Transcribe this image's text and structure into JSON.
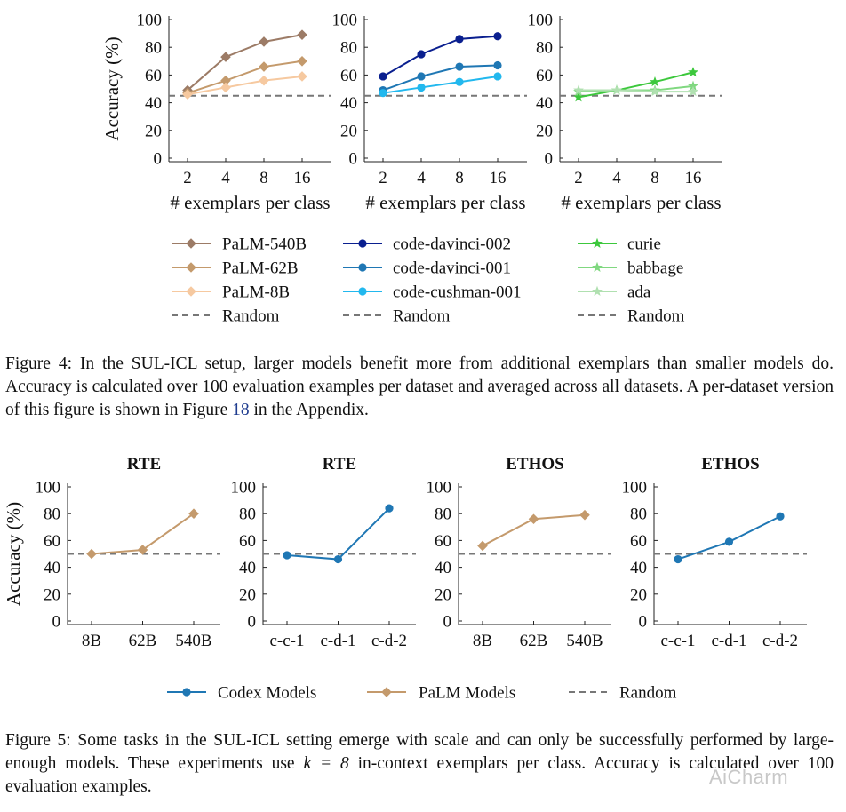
{
  "figure4": {
    "caption_label": "Figure 4:",
    "caption_text": "In the SUL-ICL setup, larger models benefit more from additional exemplars than smaller models do. Accuracy is calculated over 100 evaluation examples per dataset and averaged across all datasets. A per-dataset version of this figure is shown in Figure ",
    "caption_link": "18",
    "caption_end": " in the Appendix."
  },
  "figure5": {
    "caption_label": "Figure 5:",
    "caption_text_a": "Some tasks in the SUL-ICL setting emerge with scale and can only be successfully performed by large-enough models. These experiments use ",
    "caption_math": "k = 8",
    "caption_text_b": " in-context exemplars per class. Accuracy is calculated over 100 evaluation examples.",
    "legend": [
      {
        "label": "Codex Models",
        "color": "#1f77b4",
        "marker": "circle"
      },
      {
        "label": "PaLM Models",
        "color": "#c49a6c",
        "marker": "diamond"
      },
      {
        "label": "Random",
        "color": "#777777",
        "marker": "dash"
      }
    ]
  },
  "watermark": "AiCharm",
  "legend4": [
    [
      {
        "label": "PaLM-540B",
        "color": "#9c7b66",
        "marker": "diamond"
      },
      {
        "label": "PaLM-62B",
        "color": "#c49a6c",
        "marker": "diamond"
      },
      {
        "label": "PaLM-8B",
        "color": "#f6c9a0",
        "marker": "diamond"
      },
      {
        "label": "Random",
        "color": "#777777",
        "marker": "dash"
      }
    ],
    [
      {
        "label": "code-davinci-002",
        "color": "#0a1f8f",
        "marker": "circle"
      },
      {
        "label": "code-davinci-001",
        "color": "#1f77b4",
        "marker": "circle"
      },
      {
        "label": "code-cushman-001",
        "color": "#22b8ee",
        "marker": "circle"
      },
      {
        "label": "Random",
        "color": "#777777",
        "marker": "dash"
      }
    ],
    [
      {
        "label": "curie",
        "color": "#3cc83c",
        "marker": "star"
      },
      {
        "label": "babbage",
        "color": "#80d880",
        "marker": "star"
      },
      {
        "label": "ada",
        "color": "#b0e0b0",
        "marker": "star"
      },
      {
        "label": "Random",
        "color": "#777777",
        "marker": "dash"
      }
    ]
  ],
  "chart_data": [
    {
      "type": "line",
      "title": "",
      "xlabel": "# exemplars per class",
      "ylabel": "Accuracy (%)",
      "categories": [
        "2",
        "4",
        "8",
        "16"
      ],
      "ylim": [
        0,
        100
      ],
      "yticks": [
        "0",
        "20",
        "40",
        "60",
        "80",
        "100"
      ],
      "random": 45,
      "series": [
        {
          "name": "PaLM-540B",
          "color": "#9c7b66",
          "marker": "diamond",
          "values": [
            49,
            73,
            84,
            89
          ]
        },
        {
          "name": "PaLM-62B",
          "color": "#c49a6c",
          "marker": "diamond",
          "values": [
            47,
            56,
            66,
            70
          ]
        },
        {
          "name": "PaLM-8B",
          "color": "#f6c9a0",
          "marker": "diamond",
          "values": [
            46,
            51,
            56,
            59
          ]
        }
      ]
    },
    {
      "type": "line",
      "title": "",
      "xlabel": "# exemplars per class",
      "ylabel": "",
      "categories": [
        "2",
        "4",
        "8",
        "16"
      ],
      "ylim": [
        0,
        100
      ],
      "yticks": [
        "0",
        "20",
        "40",
        "60",
        "80",
        "100"
      ],
      "random": 45,
      "series": [
        {
          "name": "code-davinci-002",
          "color": "#0a1f8f",
          "marker": "circle",
          "values": [
            59,
            75,
            86,
            88
          ]
        },
        {
          "name": "code-davinci-001",
          "color": "#1f77b4",
          "marker": "circle",
          "values": [
            49,
            59,
            66,
            67
          ]
        },
        {
          "name": "code-cushman-001",
          "color": "#22b8ee",
          "marker": "circle",
          "values": [
            47,
            51,
            55,
            59
          ]
        }
      ]
    },
    {
      "type": "line",
      "title": "",
      "xlabel": "# exemplars per class",
      "ylabel": "",
      "categories": [
        "2",
        "4",
        "8",
        "16"
      ],
      "ylim": [
        0,
        100
      ],
      "yticks": [
        "0",
        "20",
        "40",
        "60",
        "80",
        "100"
      ],
      "random": 45,
      "series": [
        {
          "name": "curie",
          "color": "#3cc83c",
          "marker": "star",
          "values": [
            44,
            49,
            55,
            62
          ]
        },
        {
          "name": "babbage",
          "color": "#80d880",
          "marker": "star",
          "values": [
            48,
            49,
            49,
            52
          ]
        },
        {
          "name": "ada",
          "color": "#b0e0b0",
          "marker": "star",
          "values": [
            49,
            49,
            48,
            48
          ]
        }
      ]
    },
    {
      "type": "line",
      "title": "RTE",
      "xlabel": "",
      "ylabel": "Accuracy (%)",
      "categories": [
        "8B",
        "62B",
        "540B"
      ],
      "ylim": [
        0,
        100
      ],
      "yticks": [
        "0",
        "20",
        "40",
        "60",
        "80",
        "100"
      ],
      "random": 50,
      "series": [
        {
          "name": "PaLM Models",
          "color": "#c49a6c",
          "marker": "diamond",
          "values": [
            50,
            53,
            80
          ]
        }
      ]
    },
    {
      "type": "line",
      "title": "RTE",
      "xlabel": "",
      "ylabel": "",
      "categories": [
        "c-c-1",
        "c-d-1",
        "c-d-2"
      ],
      "ylim": [
        0,
        100
      ],
      "yticks": [
        "0",
        "20",
        "40",
        "60",
        "80",
        "100"
      ],
      "random": 50,
      "series": [
        {
          "name": "Codex Models",
          "color": "#1f77b4",
          "marker": "circle",
          "values": [
            49,
            46,
            84
          ]
        }
      ]
    },
    {
      "type": "line",
      "title": "ETHOS",
      "xlabel": "",
      "ylabel": "",
      "categories": [
        "8B",
        "62B",
        "540B"
      ],
      "ylim": [
        0,
        100
      ],
      "yticks": [
        "0",
        "20",
        "40",
        "60",
        "80",
        "100"
      ],
      "random": 50,
      "series": [
        {
          "name": "PaLM Models",
          "color": "#c49a6c",
          "marker": "diamond",
          "values": [
            56,
            76,
            79
          ]
        }
      ]
    },
    {
      "type": "line",
      "title": "ETHOS",
      "xlabel": "",
      "ylabel": "",
      "categories": [
        "c-c-1",
        "c-d-1",
        "c-d-2"
      ],
      "ylim": [
        0,
        100
      ],
      "yticks": [
        "0",
        "20",
        "40",
        "60",
        "80",
        "100"
      ],
      "random": 50,
      "series": [
        {
          "name": "Codex Models",
          "color": "#1f77b4",
          "marker": "circle",
          "values": [
            46,
            59,
            78
          ]
        }
      ]
    }
  ]
}
